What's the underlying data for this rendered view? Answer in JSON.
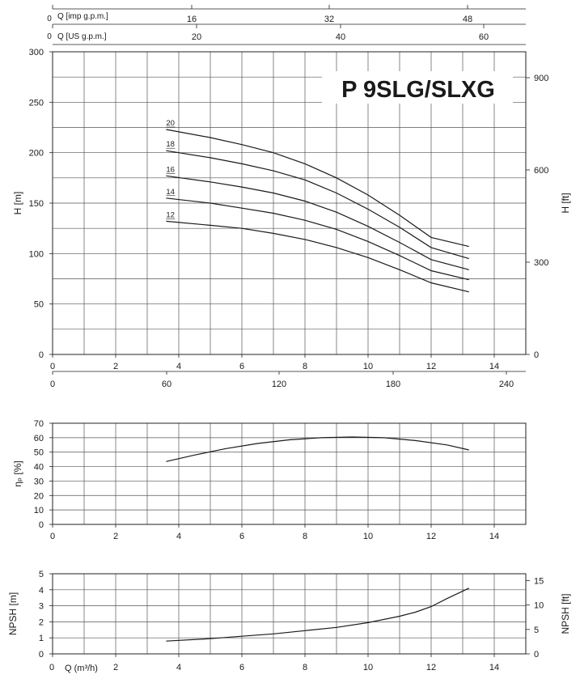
{
  "title": "P 9SLG/SLXG",
  "top_axes": {
    "imp_label": "Q [imp g.p.m.]",
    "imp_origin": "0",
    "imp_ticks": [
      "16",
      "32",
      "48"
    ],
    "us_label": "Q [US g.p.m.]",
    "us_origin": "0",
    "us_ticks": [
      "20",
      "40",
      "60"
    ]
  },
  "bottom_axes": {
    "lpm_ticks": [
      "0",
      "60",
      "120",
      "180",
      "240"
    ],
    "q_label": "Q (m³/h)"
  },
  "chart_data": [
    {
      "type": "line",
      "name": "head",
      "xlim": [
        0,
        15
      ],
      "ylim": [
        0,
        300
      ],
      "ylabel": "H [m]",
      "ylabel_right": "H [ft]",
      "x_ticks": [
        0,
        2,
        4,
        6,
        8,
        10,
        12,
        14
      ],
      "y_ticks": [
        0,
        50,
        100,
        150,
        200,
        250,
        300
      ],
      "y_ticks_right": [
        0,
        300,
        600,
        900
      ],
      "grid": true,
      "series": [
        {
          "name": "20",
          "x": [
            3.6,
            5,
            6,
            7,
            8,
            9,
            10,
            11,
            12,
            13.2
          ],
          "y": [
            223,
            215,
            208,
            200,
            189,
            175,
            158,
            138,
            116,
            107
          ]
        },
        {
          "name": "18",
          "x": [
            3.6,
            5,
            6,
            7,
            8,
            9,
            10,
            11,
            12,
            13.2
          ],
          "y": [
            202,
            195,
            189,
            182,
            173,
            160,
            144,
            126,
            106,
            95
          ]
        },
        {
          "name": "16",
          "x": [
            3.6,
            5,
            6,
            7,
            8,
            9,
            10,
            11,
            12,
            13.2
          ],
          "y": [
            177,
            171,
            166,
            160,
            152,
            141,
            127,
            111,
            94,
            84
          ]
        },
        {
          "name": "14",
          "x": [
            3.6,
            5,
            6,
            7,
            8,
            9,
            10,
            11,
            12,
            13.2
          ],
          "y": [
            155,
            150,
            145,
            140,
            133,
            124,
            112,
            98,
            83,
            74
          ]
        },
        {
          "name": "12",
          "x": [
            3.6,
            5,
            6,
            7,
            8,
            9,
            10,
            11,
            12,
            13.2
          ],
          "y": [
            132,
            128,
            125,
            120,
            114,
            106,
            96,
            84,
            71,
            62
          ]
        }
      ]
    },
    {
      "type": "line",
      "name": "efficiency",
      "xlim": [
        0,
        15
      ],
      "ylim": [
        0,
        70
      ],
      "ylabel": "ηₚ [%]",
      "x_ticks": [
        0,
        2,
        4,
        6,
        8,
        10,
        12,
        14
      ],
      "y_ticks": [
        0,
        10,
        20,
        30,
        40,
        50,
        60,
        70
      ],
      "grid": true,
      "series": [
        {
          "x": [
            3.6,
            4.5,
            5.5,
            6.5,
            7.5,
            8.5,
            9.5,
            10.5,
            11.5,
            12.5,
            13.2
          ],
          "y": [
            43.5,
            48,
            52.5,
            56,
            58.5,
            60,
            60.5,
            60,
            58,
            55,
            51.5
          ]
        }
      ]
    },
    {
      "type": "line",
      "name": "npsh",
      "xlim": [
        0,
        15
      ],
      "ylim": [
        0,
        5
      ],
      "ylabel": "NPSH [m]",
      "ylabel_right": "NPSH [ft]",
      "x_ticks": [
        0,
        2,
        4,
        6,
        8,
        10,
        12,
        14
      ],
      "y_ticks": [
        0,
        1,
        2,
        3,
        4,
        5
      ],
      "y_ticks_right": [
        0,
        5,
        10,
        15
      ],
      "grid": true,
      "series": [
        {
          "x": [
            3.6,
            5,
            6,
            7,
            8,
            9,
            10,
            11,
            11.5,
            12,
            12.5,
            13.2
          ],
          "y": [
            0.8,
            0.95,
            1.1,
            1.25,
            1.45,
            1.65,
            1.95,
            2.35,
            2.6,
            2.95,
            3.45,
            4.1
          ]
        }
      ]
    }
  ]
}
